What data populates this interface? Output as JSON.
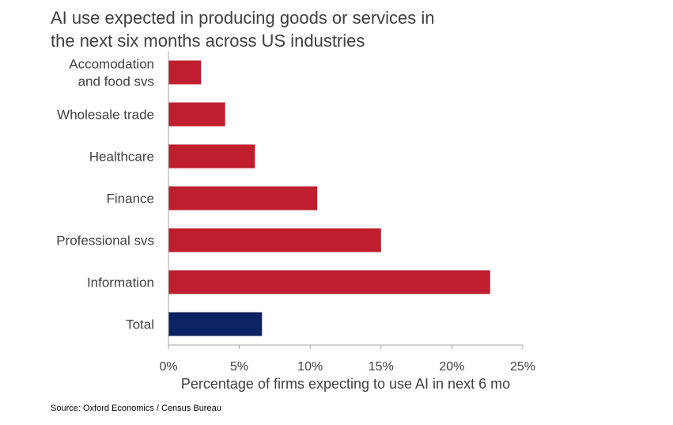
{
  "title_lines": [
    "AI use expected in producing goods or services in",
    "the next six months across US industries"
  ],
  "source": "Source: Oxford Economics / Census Bureau",
  "chart_data": {
    "type": "bar",
    "orientation": "horizontal",
    "title": "AI use expected in producing goods or services in the next six months across US industries",
    "xlabel": "Percentage of firms expecting to use AI in next 6 mo",
    "ylabel": "",
    "categories": [
      [
        "Accomodation",
        "and food svs"
      ],
      [
        "Wholesale trade"
      ],
      [
        "Healthcare"
      ],
      [
        "Finance"
      ],
      [
        "Professional svs"
      ],
      [
        "Information"
      ],
      [
        "Total"
      ]
    ],
    "values": [
      2.3,
      4.0,
      6.1,
      10.5,
      15.0,
      22.7,
      6.6
    ],
    "colors": [
      "#be1e2d",
      "#be1e2d",
      "#be1e2d",
      "#be1e2d",
      "#be1e2d",
      "#be1e2d",
      "#0d2261"
    ],
    "xlim": [
      0,
      25
    ],
    "xticks": [
      0,
      5,
      10,
      15,
      20,
      25
    ],
    "xtick_labels": [
      "0%",
      "5%",
      "10%",
      "15%",
      "20%",
      "25%"
    ],
    "grid": false,
    "legend": "none"
  }
}
